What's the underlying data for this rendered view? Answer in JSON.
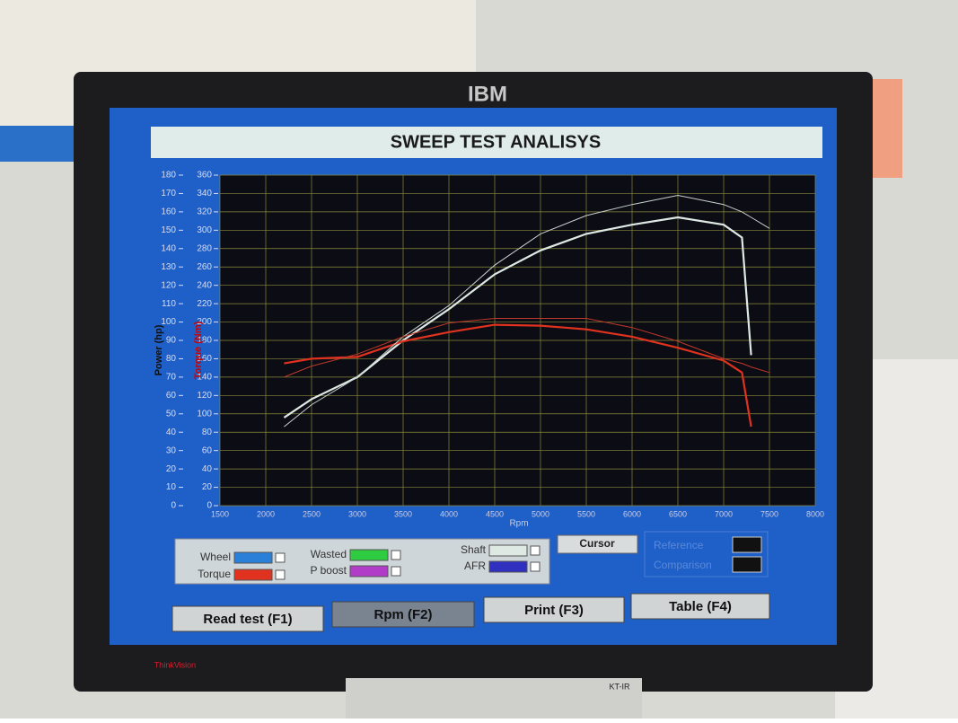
{
  "monitor": {
    "brand": "IBM",
    "model": "ThinkVision",
    "device": "KT-IR"
  },
  "chart_data": {
    "type": "line",
    "title": "SWEEP TEST ANALISYS",
    "x_label": "Rpm",
    "y_label": "Power (hp)",
    "y2_label": "Torque (Nm)",
    "x": [
      2200,
      2500,
      3000,
      3500,
      4000,
      4500,
      5000,
      5500,
      6000,
      6500,
      7000,
      7200,
      7300,
      7500
    ],
    "xlim": [
      1500,
      8000
    ],
    "xticks": [
      1500,
      2000,
      2500,
      3000,
      3500,
      4000,
      4500,
      5000,
      5500,
      6000,
      6500,
      7000,
      7500,
      8000
    ],
    "ylim": [
      0,
      180
    ],
    "yticks": [
      0,
      10,
      20,
      30,
      40,
      50,
      60,
      70,
      80,
      90,
      100,
      110,
      120,
      130,
      140,
      150,
      160,
      170,
      180
    ],
    "y2lim": [
      0,
      360
    ],
    "y2ticks": [
      0,
      20,
      40,
      60,
      80,
      100,
      120,
      140,
      160,
      180,
      200,
      220,
      240,
      260,
      280,
      300,
      320,
      340,
      360
    ],
    "grid": true,
    "series": [
      {
        "name": "Shaft",
        "color": "#dfe9e4",
        "values": [
          48,
          58,
          70,
          90,
          107,
          126,
          139,
          148,
          153,
          157,
          153,
          146,
          82,
          null
        ]
      },
      {
        "name": "Torque",
        "color": "#e0321e",
        "axis": "y2",
        "values": [
          155,
          160,
          162,
          179,
          189,
          197,
          196,
          192,
          184,
          172,
          158,
          145,
          86,
          null
        ]
      },
      {
        "name": "Comparison",
        "color": "#c9d3cf",
        "values": [
          43,
          55,
          70,
          92,
          109,
          131,
          148,
          158,
          164,
          169,
          164,
          160,
          157,
          151
        ]
      },
      {
        "color": "#c0392b",
        "axis": "y2",
        "values": [
          140,
          152,
          165,
          184,
          199,
          204,
          204,
          204,
          194,
          179,
          160,
          155,
          151,
          145
        ]
      }
    ]
  },
  "controls": {
    "channels": [
      {
        "label": "Wheel",
        "color": "#2a7fd8"
      },
      {
        "label": "Wasted",
        "color": "#2ecc40"
      },
      {
        "label": "P boost",
        "color": "#b03cc8"
      },
      {
        "label": "AFR",
        "color": "#3030c0"
      }
    ],
    "cursor": "Cursor",
    "reference": "Reference"
  },
  "buttons": [
    "Read test (F1)",
    "Rpm (F2)",
    "Print (F3)",
    "Table (F4)"
  ]
}
